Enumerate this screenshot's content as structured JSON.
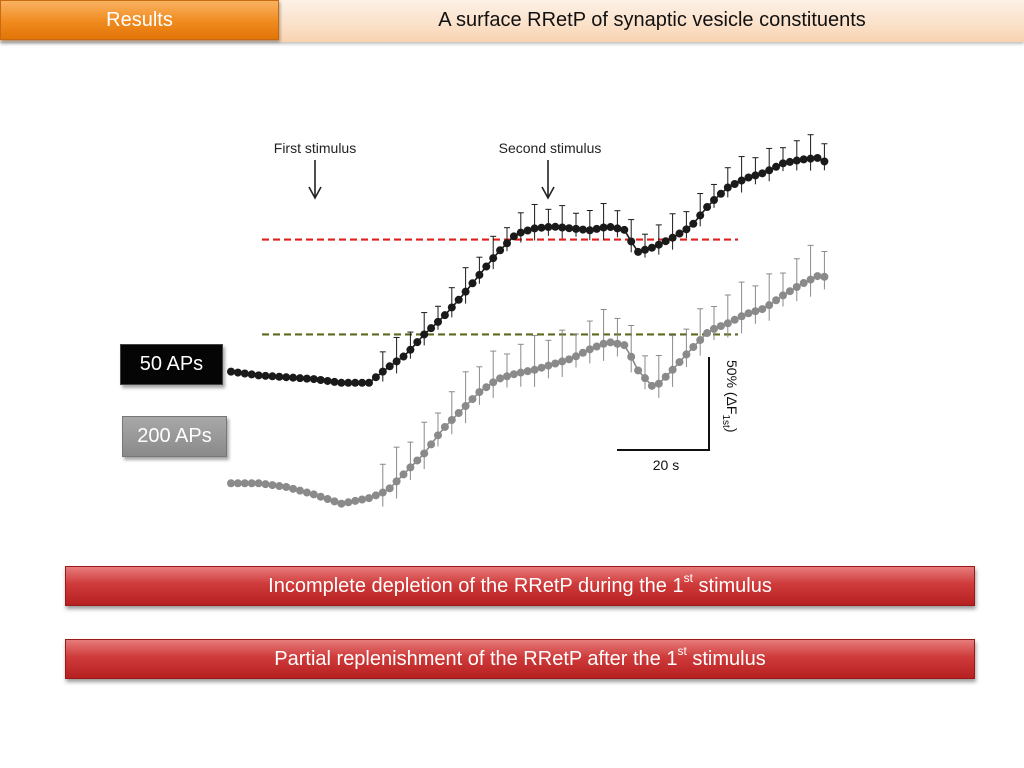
{
  "header": {
    "section_tab": "Results",
    "title": "A surface RRetP of synaptic vesicle constituents"
  },
  "legend": {
    "series_50": "50 APs",
    "series_200": "200 APs"
  },
  "chart_data": {
    "type": "line",
    "annotations": {
      "first_stimulus": "First stimulus",
      "second_stimulus": "Second stimulus"
    },
    "scale_bar": {
      "x_label": "20 s",
      "x_value_s": 20,
      "y_label_prefix": "50% (ΔF",
      "y_label_sub": "1st",
      "y_label_suffix": ")",
      "y_value_percent": 50
    },
    "stimulus_times_s": {
      "first": 24,
      "second": 88
    },
    "reference_lines": [
      {
        "level_percent": 97,
        "color": "#e01f1f"
      },
      {
        "level_percent": 46,
        "color": "#5a6b1e"
      }
    ],
    "series": [
      {
        "name": "50 APs",
        "color": "#1a1a1a",
        "points": [
          [
            0,
            26
          ],
          [
            6,
            24
          ],
          [
            12,
            23
          ],
          [
            18,
            22
          ],
          [
            24,
            20
          ],
          [
            30,
            20
          ],
          [
            34,
            28
          ],
          [
            38,
            35
          ],
          [
            42,
            46
          ],
          [
            46,
            55
          ],
          [
            50,
            66
          ],
          [
            54,
            78
          ],
          [
            58,
            90
          ],
          [
            62,
            100
          ],
          [
            66,
            103
          ],
          [
            70,
            104
          ],
          [
            74,
            103
          ],
          [
            78,
            102
          ],
          [
            82,
            104
          ],
          [
            86,
            102
          ],
          [
            88,
            90
          ],
          [
            92,
            93
          ],
          [
            96,
            98
          ],
          [
            100,
            104
          ],
          [
            104,
            116
          ],
          [
            108,
            125
          ],
          [
            112,
            130
          ],
          [
            116,
            133
          ],
          [
            120,
            138
          ],
          [
            124,
            140
          ],
          [
            128,
            141
          ],
          [
            130,
            137
          ]
        ],
        "err": 14
      },
      {
        "name": "200 APs",
        "color": "#8a8a8a",
        "points": [
          [
            0,
            -34
          ],
          [
            6,
            -34
          ],
          [
            12,
            -36
          ],
          [
            18,
            -40
          ],
          [
            24,
            -45
          ],
          [
            30,
            -42
          ],
          [
            34,
            -38
          ],
          [
            38,
            -28
          ],
          [
            42,
            -18
          ],
          [
            46,
            -5
          ],
          [
            50,
            5
          ],
          [
            54,
            15
          ],
          [
            58,
            22
          ],
          [
            62,
            25
          ],
          [
            66,
            27
          ],
          [
            70,
            30
          ],
          [
            74,
            33
          ],
          [
            78,
            38
          ],
          [
            82,
            42
          ],
          [
            86,
            40
          ],
          [
            88,
            28
          ],
          [
            92,
            17
          ],
          [
            96,
            27
          ],
          [
            100,
            38
          ],
          [
            104,
            48
          ],
          [
            108,
            52
          ],
          [
            112,
            57
          ],
          [
            116,
            60
          ],
          [
            120,
            67
          ],
          [
            124,
            73
          ],
          [
            128,
            78
          ],
          [
            130,
            76
          ]
        ],
        "err": 20
      }
    ]
  },
  "conclusions": {
    "first": {
      "text": "Incomplete depletion of the RRetP during the 1",
      "sup": "st",
      "tail": " stimulus"
    },
    "second": {
      "text": "Partial replenishment of the RRetP after the 1",
      "sup": "st",
      "tail": " stimulus"
    }
  }
}
